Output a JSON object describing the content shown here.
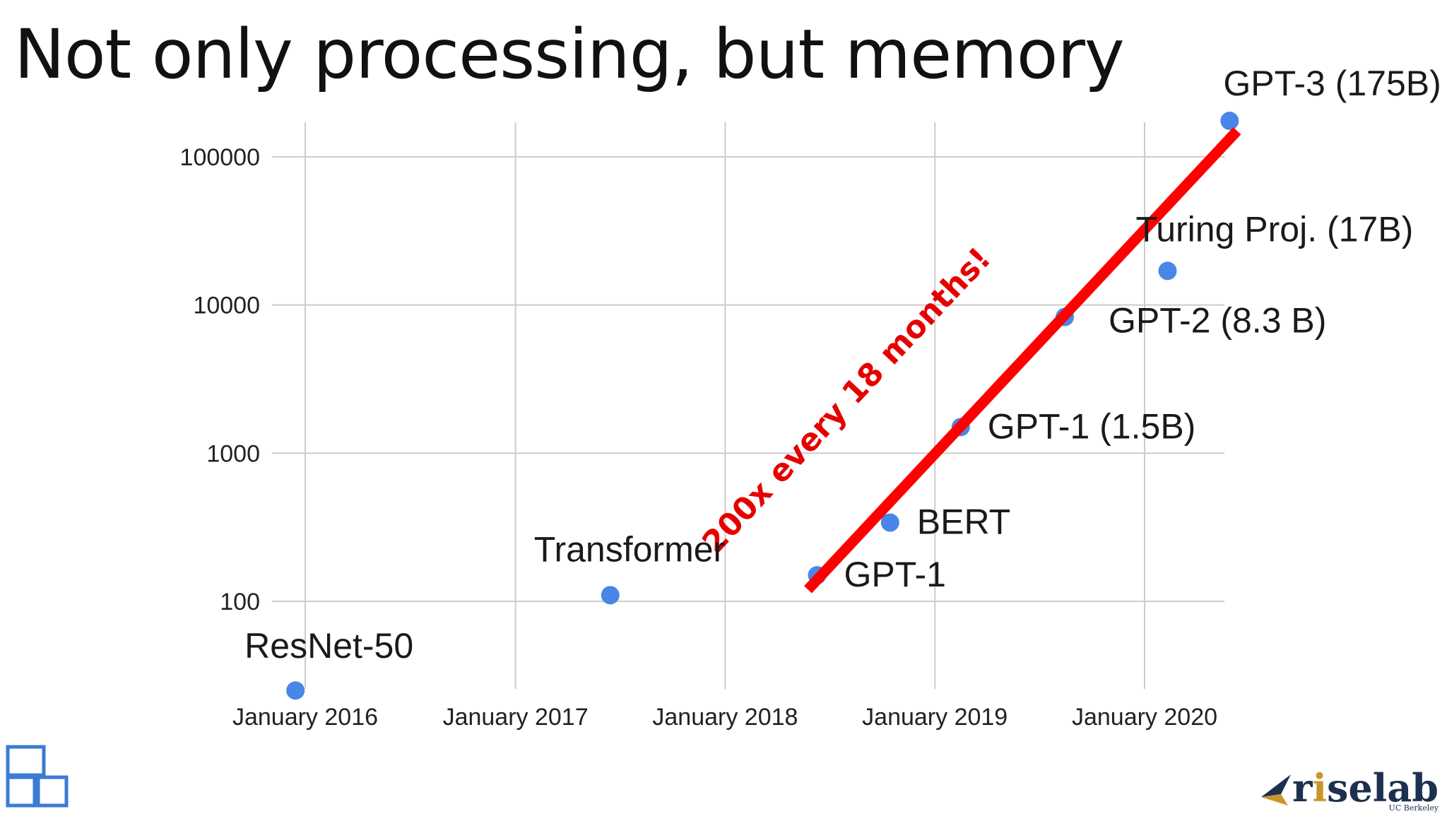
{
  "title": "Not only processing, but memory",
  "colors": {
    "point": "#4a86e8",
    "trend_line": "#ff0000",
    "annotation": "#e60000",
    "grid": "#cccccc",
    "logo_left": "#3a7bd5",
    "logo_right": "#1e3050",
    "logo_right_accent": "#c9962b"
  },
  "chart_data": {
    "type": "scatter",
    "yscale": "log",
    "grid": true,
    "ylim": [
      25,
      175000
    ],
    "xlim": [
      "2015-12-15",
      "2020-06-01"
    ],
    "x_ticks": [
      {
        "date": "2016-01-01",
        "label": "January 2016"
      },
      {
        "date": "2017-01-01",
        "label": "January 2017"
      },
      {
        "date": "2018-01-01",
        "label": "January 2018"
      },
      {
        "date": "2019-01-01",
        "label": "January 2019"
      },
      {
        "date": "2020-01-01",
        "label": "January 2020"
      }
    ],
    "y_ticks": [
      {
        "value": 100,
        "label": "100"
      },
      {
        "value": 1000,
        "label": "1000"
      },
      {
        "value": 10000,
        "label": "10000"
      },
      {
        "value": 100000,
        "label": "100000"
      }
    ],
    "points": [
      {
        "label": "ResNet-50",
        "date": "2015-12-15",
        "value": 25,
        "label_pos": "above"
      },
      {
        "label": "Transformer",
        "date": "2017-06-15",
        "value": 110,
        "label_pos": "above"
      },
      {
        "label": "GPT-1",
        "date": "2018-06-10",
        "value": 150,
        "label_pos": "right"
      },
      {
        "label": "BERT",
        "date": "2018-10-15",
        "value": 340,
        "label_pos": "right"
      },
      {
        "label": "GPT-1 (1.5B)",
        "date": "2019-02-15",
        "value": 1500,
        "label_pos": "right"
      },
      {
        "label": "GPT-2 (8.3 B)",
        "date": "2019-08-15",
        "value": 8300,
        "label_pos": "right"
      },
      {
        "label": "Turing Proj. (17B)",
        "date": "2020-02-10",
        "value": 17000,
        "label_pos": "above"
      },
      {
        "label": "GPT-3 (175B)",
        "date": "2020-05-28",
        "value": 175000,
        "label_pos": "above"
      }
    ],
    "annotation": {
      "text": "200x every 18 months!",
      "line_start": {
        "date": "2018-05-25",
        "value": 120
      },
      "line_end": {
        "date": "2020-06-10",
        "value": 150000
      }
    }
  },
  "logos": {
    "right": {
      "main": "riselab",
      "sub": "UC Berkeley"
    }
  }
}
